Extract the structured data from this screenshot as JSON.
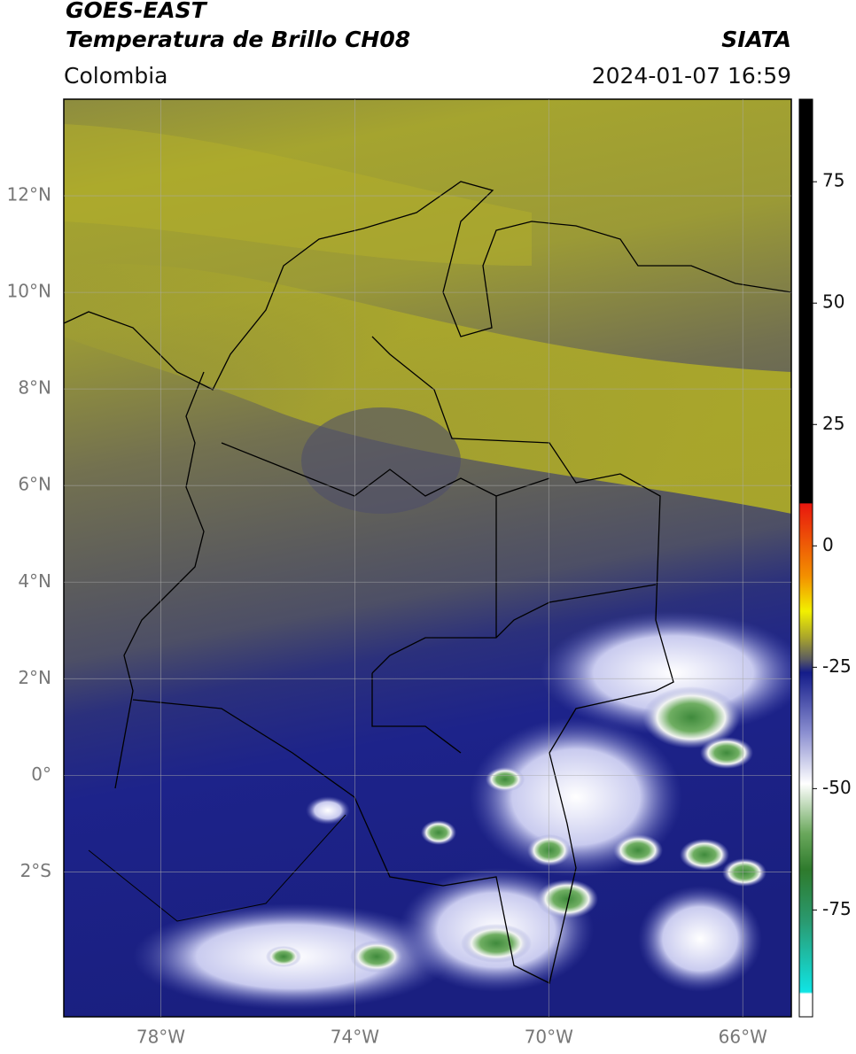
{
  "header": {
    "title": "GOES-EAST",
    "subtitle": "Temperatura de Brillo CH08",
    "source": "SIATA",
    "region": "Colombia",
    "datetime": "2024-01-07 16:59"
  },
  "map": {
    "lon_range": [
      -80,
      -65
    ],
    "lat_range": [
      -5,
      14
    ],
    "lat_ticks": [
      {
        "value": 12,
        "label": "12°N"
      },
      {
        "value": 10,
        "label": "10°N"
      },
      {
        "value": 8,
        "label": "8°N"
      },
      {
        "value": 6,
        "label": "6°N"
      },
      {
        "value": 4,
        "label": "4°N"
      },
      {
        "value": 2,
        "label": "2°N"
      },
      {
        "value": 0,
        "label": "0°"
      },
      {
        "value": -2,
        "label": "2°S"
      }
    ],
    "lon_ticks": [
      {
        "value": -78,
        "label": "78°W"
      },
      {
        "value": -74,
        "label": "74°W"
      },
      {
        "value": -70,
        "label": "70°W"
      },
      {
        "value": -66,
        "label": "66°W"
      }
    ]
  },
  "colorbar": {
    "range": [
      -97,
      92
    ],
    "ticks": [
      75,
      50,
      25,
      0,
      -25,
      -50,
      -75
    ]
  }
}
